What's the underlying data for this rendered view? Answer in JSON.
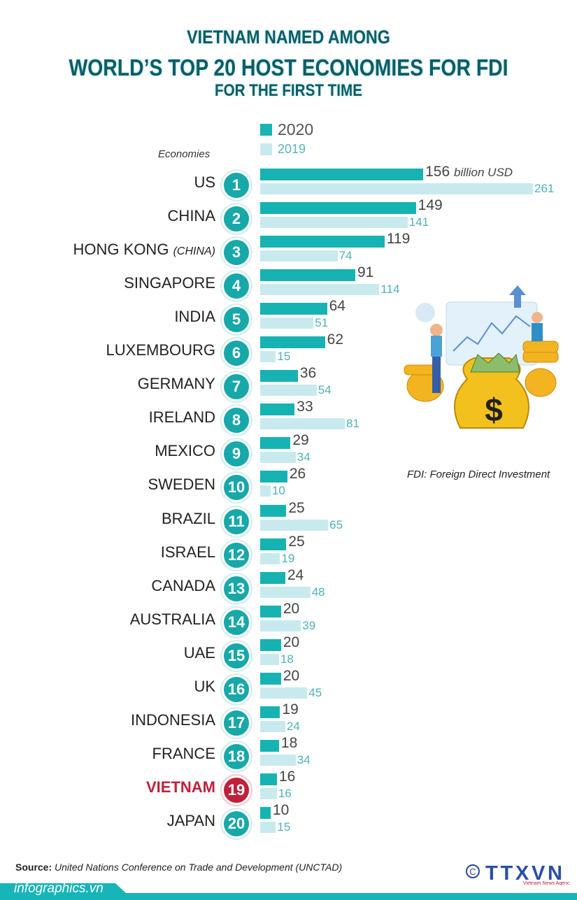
{
  "title": {
    "line1": "VIETNAM NAMED AMONG",
    "line2": "WORLD’S TOP 20  HOST ECONOMIES FOR FDI",
    "line3": "FOR THE FIRST TIME"
  },
  "note": "FDI:  Foreign Direct Investment",
  "source_label": "Source:",
  "source_text": " United Nations Conference on Trade and Development (UNCTAD)",
  "footer": {
    "site": "infographics.vn",
    "logo": "TTXVN",
    "logo_sub": "Vietnam News Agency"
  },
  "colors": {
    "2020": "#17b3b3",
    "2019": "#c8eaee",
    "rank": "#17a8a9",
    "highlight": "#c0203a",
    "title": "#0c5d66"
  },
  "chart_data": {
    "type": "bar",
    "orientation": "horizontal",
    "category_header": "Economies",
    "unit": "billion USD",
    "categories": [
      "US",
      "CHINA",
      "HONG KONG",
      "SINGAPORE",
      "INDIA",
      "LUXEMBOURG",
      "GERMANY",
      "IRELAND",
      "MEXICO",
      "SWEDEN",
      "BRAZIL",
      "ISRAEL",
      "CANADA",
      "AUSTRALIA",
      "UAE",
      "UK",
      "INDONESIA",
      "FRANCE",
      "VIETNAM",
      "JAPAN"
    ],
    "category_suffix": {
      "HONG KONG": "(CHINA)"
    },
    "ranks": [
      1,
      2,
      3,
      4,
      5,
      6,
      7,
      8,
      9,
      10,
      11,
      12,
      13,
      14,
      15,
      16,
      17,
      18,
      19,
      20
    ],
    "highlight": "VIETNAM",
    "series": [
      {
        "name": "2020",
        "values": [
          156,
          149,
          119,
          91,
          64,
          62,
          36,
          33,
          29,
          26,
          25,
          25,
          24,
          20,
          20,
          20,
          19,
          18,
          16,
          10
        ]
      },
      {
        "name": "2019",
        "values": [
          261,
          141,
          74,
          114,
          51,
          15,
          54,
          81,
          34,
          10,
          65,
          19,
          48,
          39,
          18,
          45,
          24,
          34,
          16,
          15
        ]
      }
    ],
    "legend": [
      "2020",
      "2019"
    ],
    "legend_placement": "top",
    "grid": false
  }
}
